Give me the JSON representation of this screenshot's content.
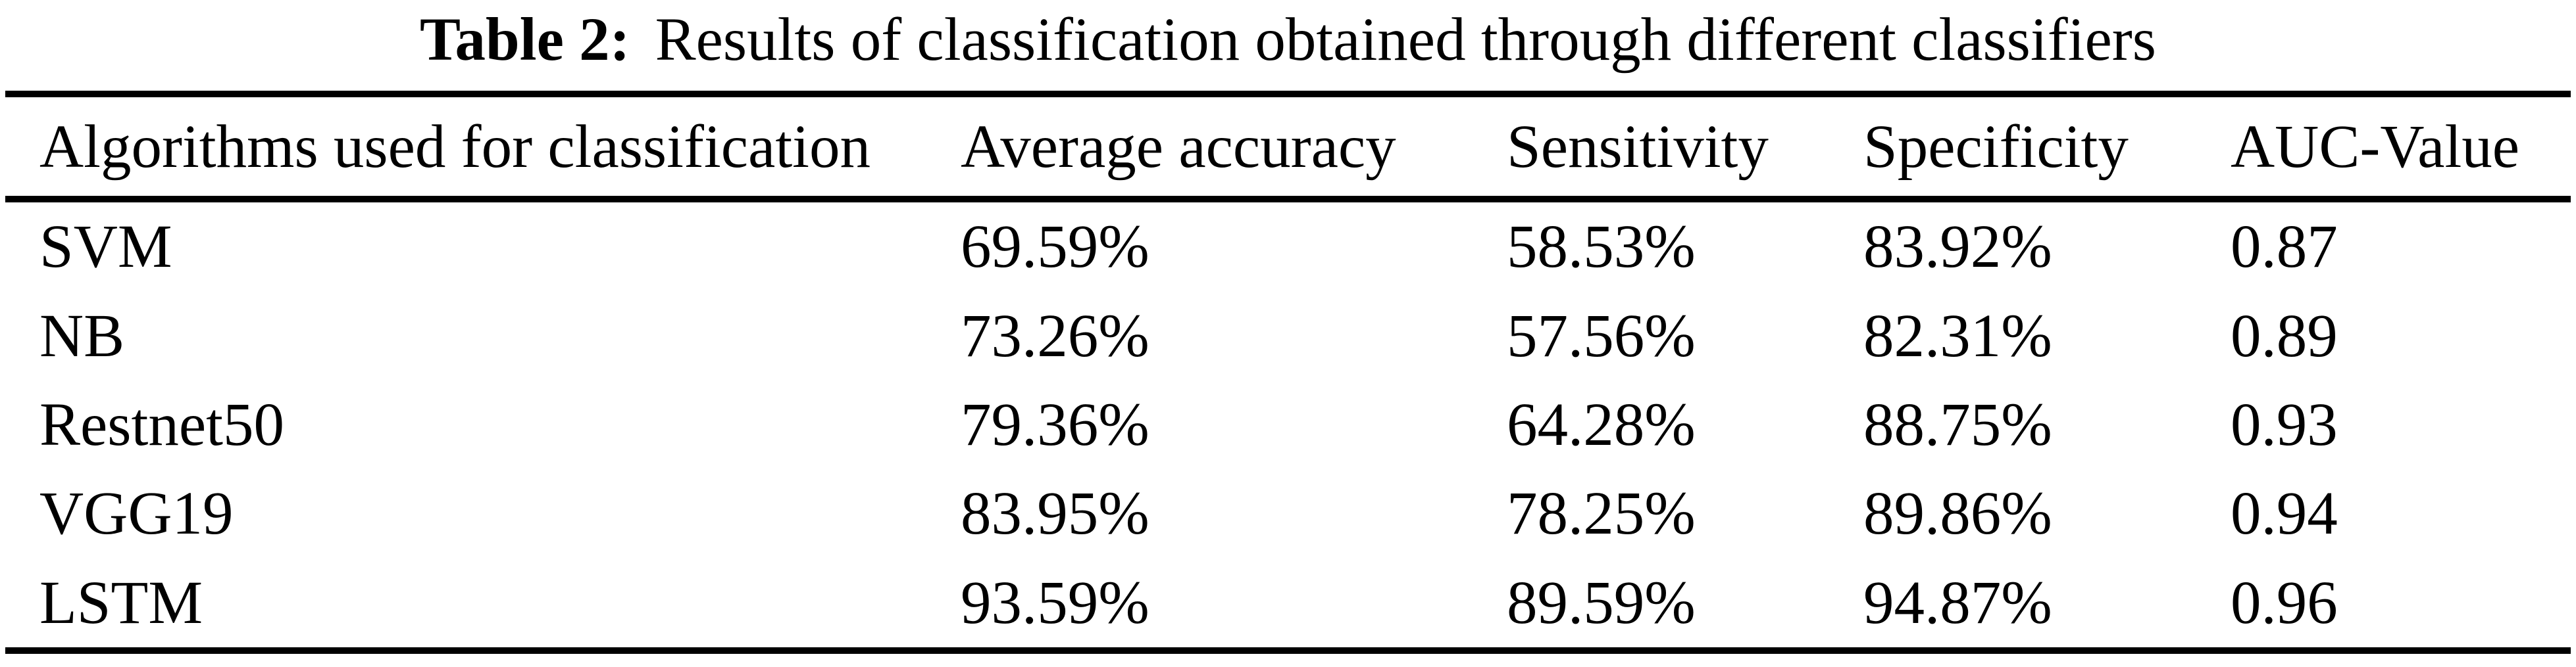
{
  "caption": {
    "label": "Table 2:",
    "text": "Results of classification obtained through different classifiers"
  },
  "table": {
    "columns": [
      "Algorithms used for classification",
      "Average accuracy",
      "Sensitivity",
      "Specificity",
      "AUC-Value"
    ],
    "rows": [
      {
        "algorithm": "SVM",
        "average_accuracy": "69.59%",
        "sensitivity": "58.53%",
        "specificity": "83.92%",
        "auc_value": "0.87"
      },
      {
        "algorithm": "NB",
        "average_accuracy": "73.26%",
        "sensitivity": "57.56%",
        "specificity": "82.31%",
        "auc_value": "0.89"
      },
      {
        "algorithm": "Restnet50",
        "average_accuracy": "79.36%",
        "sensitivity": "64.28%",
        "specificity": "88.75%",
        "auc_value": "0.93"
      },
      {
        "algorithm": "VGG19",
        "average_accuracy": "83.95%",
        "sensitivity": "78.25%",
        "specificity": "89.86%",
        "auc_value": "0.94"
      },
      {
        "algorithm": "LSTM",
        "average_accuracy": "93.59%",
        "sensitivity": "89.59%",
        "specificity": "94.87%",
        "auc_value": "0.96"
      }
    ]
  },
  "colors": {
    "background": "#ffffff",
    "text": "#000000",
    "rule": "#000000"
  }
}
